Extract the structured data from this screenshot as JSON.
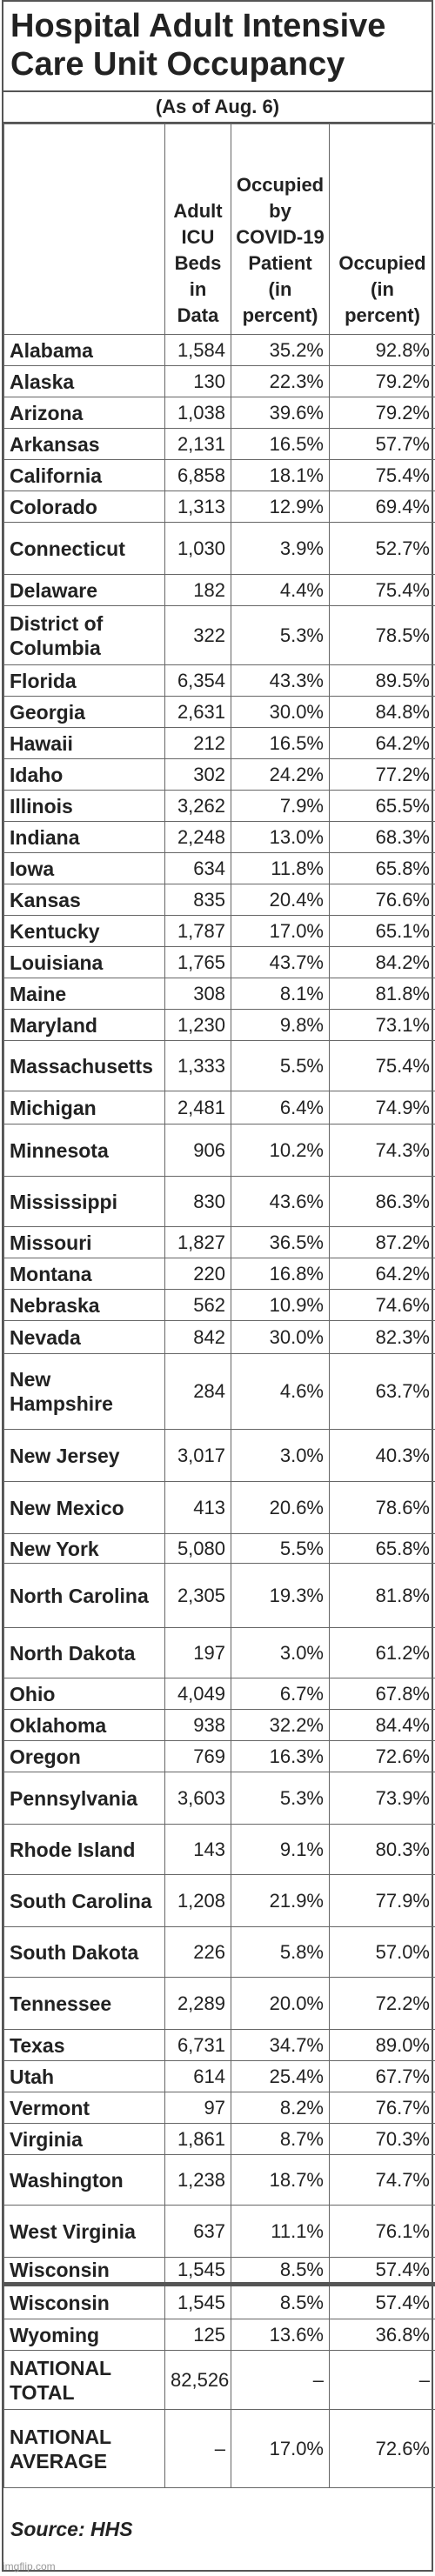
{
  "title": "Hospital Adult Intensive Care Unit Occupancy",
  "subtitle": "(As of Aug. 6)",
  "table": {
    "header": [
      "Adult ICU Beds in Data",
      "Occupied by COVID-19 Patient (in percent)",
      "Occupied (in percent)"
    ],
    "rows": [
      [
        "Alabama",
        "1,584",
        "35.2%",
        "92.8%"
      ],
      [
        "Alaska",
        "130",
        "22.3%",
        "79.2%"
      ],
      [
        "Arizona",
        "1,038",
        "39.6%",
        "79.2%"
      ],
      [
        "Arkansas",
        "2,131",
        "16.5%",
        "57.7%"
      ],
      [
        "California",
        "6,858",
        "18.1%",
        "75.4%"
      ],
      [
        "Colorado",
        "1,313",
        "12.9%",
        "69.4%"
      ],
      [
        "Connecticut",
        "1,030",
        "3.9%",
        "52.7%"
      ],
      [
        "Delaware",
        "182",
        "4.4%",
        "75.4%"
      ],
      [
        "District of Columbia",
        "322",
        "5.3%",
        "78.5%"
      ],
      [
        "Florida",
        "6,354",
        "43.3%",
        "89.5%"
      ],
      [
        "Georgia",
        "2,631",
        "30.0%",
        "84.8%"
      ],
      [
        "Hawaii",
        "212",
        "16.5%",
        "64.2%"
      ],
      [
        "Idaho",
        "302",
        "24.2%",
        "77.2%"
      ],
      [
        "Illinois",
        "3,262",
        "7.9%",
        "65.5%"
      ],
      [
        "Indiana",
        "2,248",
        "13.0%",
        "68.3%"
      ],
      [
        "Iowa",
        "634",
        "11.8%",
        "65.8%"
      ],
      [
        "Kansas",
        "835",
        "20.4%",
        "76.6%"
      ],
      [
        "Kentucky",
        "1,787",
        "17.0%",
        "65.1%"
      ],
      [
        "Louisiana",
        "1,765",
        "43.7%",
        "84.2%"
      ],
      [
        "Maine",
        "308",
        "8.1%",
        "81.8%"
      ],
      [
        "Maryland",
        "1,230",
        "9.8%",
        "73.1%"
      ],
      [
        "Massachusetts",
        "1,333",
        "5.5%",
        "75.4%"
      ],
      [
        "Michigan",
        "2,481",
        "6.4%",
        "74.9%"
      ],
      [
        "Minnesota",
        "906",
        "10.2%",
        "74.3%"
      ],
      [
        "Mississippi",
        "830",
        "43.6%",
        "86.3%"
      ],
      [
        "Missouri",
        "1,827",
        "36.5%",
        "87.2%"
      ],
      [
        "Montana",
        "220",
        "16.8%",
        "64.2%"
      ],
      [
        "Nebraska",
        "562",
        "10.9%",
        "74.6%"
      ],
      [
        "Nevada",
        "842",
        "30.0%",
        "82.3%"
      ],
      [
        "New Hampshire",
        "284",
        "4.6%",
        "63.7%"
      ],
      [
        "New Jersey",
        "3,017",
        "3.0%",
        "40.3%"
      ],
      [
        "New Mexico",
        "413",
        "20.6%",
        "78.6%"
      ],
      [
        "New York",
        "5,080",
        "5.5%",
        "65.8%"
      ],
      [
        "North Carolina",
        "2,305",
        "19.3%",
        "81.8%"
      ],
      [
        "North Dakota",
        "197",
        "3.0%",
        "61.2%"
      ],
      [
        "Ohio",
        "4,049",
        "6.7%",
        "67.8%"
      ],
      [
        "Oklahoma",
        "938",
        "32.2%",
        "84.4%"
      ],
      [
        "Oregon",
        "769",
        "16.3%",
        "72.6%"
      ],
      [
        "Pennsylvania",
        "3,603",
        "5.3%",
        "73.9%"
      ],
      [
        "Rhode Island",
        "143",
        "9.1%",
        "80.3%"
      ],
      [
        "South Carolina",
        "1,208",
        "21.9%",
        "77.9%"
      ],
      [
        "South Dakota",
        "226",
        "5.8%",
        "57.0%"
      ],
      [
        "Tennessee",
        "2,289",
        "20.0%",
        "72.2%"
      ],
      [
        "Texas",
        "6,731",
        "34.7%",
        "89.0%"
      ],
      [
        "Utah",
        "614",
        "25.4%",
        "67.7%"
      ],
      [
        "Vermont",
        "97",
        "8.2%",
        "76.7%"
      ],
      [
        "Virginia",
        "1,861",
        "8.7%",
        "70.3%"
      ],
      [
        "Washington",
        "1,238",
        "18.7%",
        "74.7%"
      ],
      [
        "West Virginia",
        "637",
        "11.1%",
        "76.1%"
      ],
      [
        "Wisconsin",
        "1,545",
        "8.5%",
        "57.4%"
      ],
      [
        "Wisconsin",
        "1,545",
        "8.5%",
        "57.4%"
      ],
      [
        "Wyoming",
        "125",
        "13.6%",
        "36.8%"
      ],
      [
        "NATIONAL TOTAL",
        "82,526",
        "–",
        "–"
      ],
      [
        "NATIONAL AVERAGE",
        "–",
        "17.0%",
        "72.6%"
      ]
    ]
  },
  "source": "Source: HHS",
  "watermark": "imgflip.com"
}
